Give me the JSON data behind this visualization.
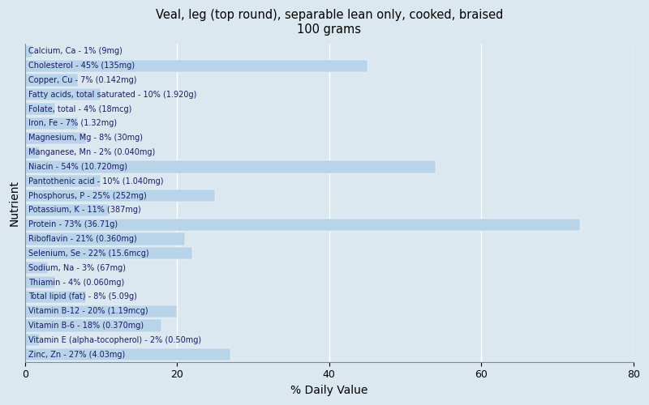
{
  "title": "Veal, leg (top round), separable lean only, cooked, braised\n100 grams",
  "xlabel": "% Daily Value",
  "ylabel": "Nutrient",
  "xlim": [
    0,
    80
  ],
  "background_color": "#dce8f0",
  "plot_bg_color": "#dce8f0",
  "bar_color": "#b8d4e8",
  "text_color": "#1a1a6e",
  "xticks": [
    0,
    20,
    40,
    60,
    80
  ],
  "nutrients": [
    {
      "label": "Calcium, Ca - 1% (9mg)",
      "value": 1
    },
    {
      "label": "Cholesterol - 45% (135mg)",
      "value": 45
    },
    {
      "label": "Copper, Cu - 7% (0.142mg)",
      "value": 7
    },
    {
      "label": "Fatty acids, total saturated - 10% (1.920g)",
      "value": 10
    },
    {
      "label": "Folate, total - 4% (18mcg)",
      "value": 4
    },
    {
      "label": "Iron, Fe - 7% (1.32mg)",
      "value": 7
    },
    {
      "label": "Magnesium, Mg - 8% (30mg)",
      "value": 8
    },
    {
      "label": "Manganese, Mn - 2% (0.040mg)",
      "value": 2
    },
    {
      "label": "Niacin - 54% (10.720mg)",
      "value": 54
    },
    {
      "label": "Pantothenic acid - 10% (1.040mg)",
      "value": 10
    },
    {
      "label": "Phosphorus, P - 25% (252mg)",
      "value": 25
    },
    {
      "label": "Potassium, K - 11% (387mg)",
      "value": 11
    },
    {
      "label": "Protein - 73% (36.71g)",
      "value": 73
    },
    {
      "label": "Riboflavin - 21% (0.360mg)",
      "value": 21
    },
    {
      "label": "Selenium, Se - 22% (15.6mcg)",
      "value": 22
    },
    {
      "label": "Sodium, Na - 3% (67mg)",
      "value": 3
    },
    {
      "label": "Thiamin - 4% (0.060mg)",
      "value": 4
    },
    {
      "label": "Total lipid (fat) - 8% (5.09g)",
      "value": 8
    },
    {
      "label": "Vitamin B-12 - 20% (1.19mcg)",
      "value": 20
    },
    {
      "label": "Vitamin B-6 - 18% (0.370mg)",
      "value": 18
    },
    {
      "label": "Vitamin E (alpha-tocopherol) - 2% (0.50mg)",
      "value": 2
    },
    {
      "label": "Zinc, Zn - 27% (4.03mg)",
      "value": 27
    }
  ]
}
